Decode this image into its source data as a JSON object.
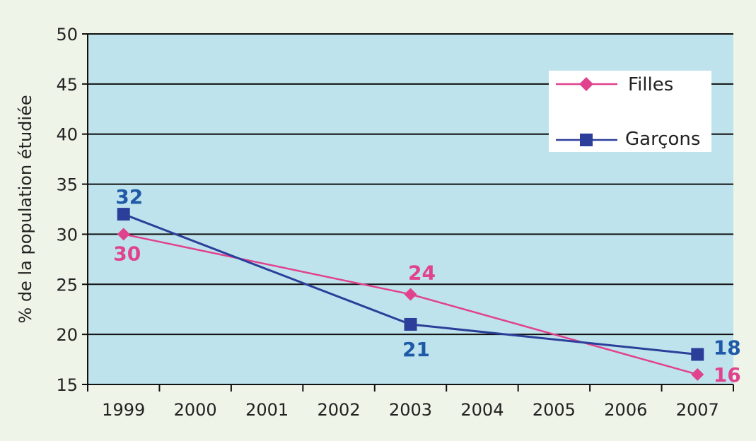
{
  "chart_data": {
    "type": "line",
    "title": "",
    "xlabel": "",
    "ylabel": "% de la population étudiée",
    "categories": [
      "1999",
      "2000",
      "2001",
      "2002",
      "2003",
      "2004",
      "2005",
      "2006",
      "2007"
    ],
    "ylim": [
      15,
      50
    ],
    "yticks": [
      15,
      20,
      25,
      30,
      35,
      40,
      45,
      50
    ],
    "grid": true,
    "legend_position": "top-right",
    "series": [
      {
        "name": "Filles",
        "color": "#e0428e",
        "marker": "diamond",
        "points": [
          {
            "x": 1999.5,
            "y": 30,
            "label": "30"
          },
          {
            "x": 2003.5,
            "y": 24,
            "label": "24"
          },
          {
            "x": 2007.5,
            "y": 16,
            "label": "16"
          }
        ]
      },
      {
        "name": "Garçons",
        "color": "#2b3f9a",
        "marker": "square",
        "points": [
          {
            "x": 1999.5,
            "y": 32,
            "label": "32"
          },
          {
            "x": 2003.5,
            "y": 21,
            "label": "21"
          },
          {
            "x": 2007.5,
            "y": 18,
            "label": "18"
          }
        ]
      }
    ],
    "colors": {
      "plot_background": "#bfe3ec",
      "gridline": "#111111",
      "filles_label": "#e0428e",
      "garcons_label": "#1f5aa8"
    }
  }
}
